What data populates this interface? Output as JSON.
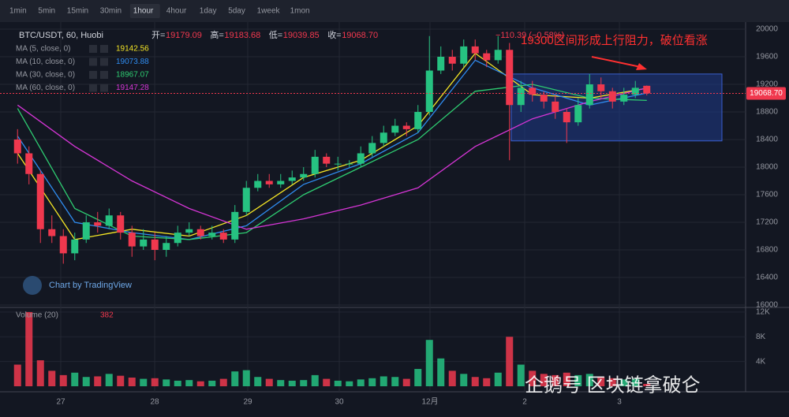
{
  "toolbar": {
    "timeframes": [
      "1min",
      "5min",
      "15min",
      "30min",
      "1hour",
      "4hour",
      "1day",
      "5day",
      "1week",
      "1mon"
    ],
    "active": 4
  },
  "chart_data": {
    "type": "candlestick",
    "symbol": "BTC/USDT, 60, Huobi",
    "header": [
      {
        "label": "开=",
        "value": "19179.09"
      },
      {
        "label": "高=",
        "value": "19183.68"
      },
      {
        "label": "低=",
        "value": "19039.85"
      },
      {
        "label": "收=",
        "value": "19068.70"
      }
    ],
    "change": "−110.39 (−0.58%)",
    "annotation": "19300区间形成上行阻力，破位看涨",
    "zone": [
      18380,
      19350
    ],
    "watermark": "Chart by TradingView",
    "credit": "企鹅号 区块链拿破仑",
    "up_color": "#26c281",
    "down_color": "#f0384e",
    "ylim": [
      16000,
      20000
    ],
    "yticks": [
      16000,
      16400,
      16800,
      17200,
      17600,
      18000,
      18400,
      18800,
      19200,
      19600,
      20000
    ],
    "xtick_labels": [
      "27",
      "28",
      "29",
      "30",
      "12月",
      "2",
      "3"
    ],
    "open": [
      18400,
      18200,
      17900,
      17100,
      17000,
      16750,
      16950,
      17200,
      17150,
      17300,
      17050,
      16850,
      16950,
      16800,
      16900,
      17050,
      17100,
      17000,
      17050,
      16950,
      17350,
      17700,
      17800,
      17750,
      17800,
      17850,
      17900,
      18150,
      18050,
      18050,
      18050,
      18200,
      18350,
      18500,
      18600,
      18550,
      18800,
      19400,
      19600,
      19500,
      19750,
      19650,
      19550,
      19700,
      18900,
      19150,
      19050,
      18950,
      18800,
      18650,
      18900,
      19200,
      19100,
      18950,
      19050,
      19179.09
    ],
    "high": [
      18550,
      18300,
      17950,
      17300,
      17100,
      17050,
      17300,
      17350,
      17400,
      17350,
      17150,
      17100,
      17050,
      17000,
      17150,
      17200,
      17150,
      17150,
      17100,
      17450,
      17800,
      17900,
      17900,
      17900,
      17950,
      18000,
      18250,
      18200,
      18150,
      18100,
      18300,
      18450,
      18600,
      18700,
      18650,
      18900,
      19900,
      19750,
      19700,
      19850,
      19850,
      19700,
      19900,
      19800,
      19250,
      19250,
      19100,
      19050,
      18850,
      19000,
      19350,
      19300,
      19150,
      19150,
      19250,
      19183.68
    ],
    "low": [
      18050,
      17750,
      16900,
      16900,
      16600,
      16650,
      16900,
      17050,
      17100,
      16950,
      16700,
      16800,
      16650,
      16700,
      16850,
      17000,
      16950,
      16950,
      16900,
      16900,
      17300,
      17650,
      17700,
      17700,
      17750,
      17800,
      17850,
      18000,
      17950,
      18000,
      18000,
      18150,
      18300,
      18450,
      18450,
      18500,
      18750,
      19350,
      19400,
      19450,
      19550,
      19450,
      19500,
      18100,
      18800,
      18950,
      18850,
      18700,
      18350,
      18600,
      18850,
      19000,
      18850,
      18900,
      19000,
      19039.85
    ],
    "close": [
      18200,
      17900,
      17100,
      17000,
      16750,
      16950,
      17200,
      17150,
      17300,
      17050,
      16850,
      16950,
      16800,
      16900,
      17050,
      17100,
      17000,
      17050,
      16950,
      17350,
      17700,
      17800,
      17750,
      17800,
      17850,
      17900,
      18150,
      18050,
      18050,
      18050,
      18200,
      18350,
      18500,
      18600,
      18550,
      18800,
      19400,
      19600,
      19500,
      19750,
      19650,
      19550,
      19700,
      18900,
      19150,
      19050,
      18950,
      18800,
      18650,
      18900,
      19200,
      19100,
      18950,
      19050,
      19150,
      19068.7
    ],
    "ma": [
      {
        "name": "MA (5, close, 0)",
        "color": "#f5e625",
        "x": [
          0,
          5,
          10,
          15,
          20,
          25,
          30,
          35,
          40,
          45,
          50,
          55
        ],
        "values": [
          18200,
          16950,
          17100,
          17000,
          17300,
          17850,
          18100,
          18600,
          19650,
          19050,
          19000,
          19142.56
        ]
      },
      {
        "name": "MA (10, close, 0)",
        "color": "#2f8cf0",
        "x": [
          0,
          5,
          10,
          15,
          20,
          25,
          30,
          35,
          40,
          45,
          50,
          55
        ],
        "values": [
          18450,
          17200,
          17050,
          16950,
          17150,
          17750,
          18050,
          18500,
          19550,
          19150,
          18900,
          19073.88
        ]
      },
      {
        "name": "MA (30, close, 0)",
        "color": "#2ecc71",
        "x": [
          0,
          5,
          10,
          15,
          20,
          25,
          30,
          35,
          40,
          45,
          50,
          55
        ],
        "values": [
          18850,
          17400,
          17000,
          16950,
          17050,
          17600,
          18000,
          18400,
          19100,
          19200,
          19000,
          18967.07
        ]
      },
      {
        "name": "MA (60, close, 0)",
        "color": "#d535d5",
        "x": [
          0,
          5,
          10,
          15,
          20,
          25,
          30,
          35,
          40,
          45,
          50,
          55
        ],
        "values": [
          18900,
          18300,
          17800,
          17400,
          17100,
          17250,
          17450,
          17700,
          18300,
          18700,
          18950,
          19147.28
        ]
      }
    ],
    "volume_name": "Volume (20)",
    "volume": [
      3500,
      12000,
      4200,
      2500,
      1800,
      2200,
      1500,
      1600,
      2000,
      1700,
      1400,
      1200,
      1300,
      1100,
      900,
      1000,
      800,
      900,
      1200,
      2400,
      2600,
      1500,
      1200,
      1000,
      900,
      1000,
      1800,
      1200,
      900,
      800,
      1100,
      1300,
      1600,
      1500,
      1200,
      2800,
      7500,
      4500,
      2500,
      2000,
      1500,
      1300,
      2200,
      8000,
      3500,
      2500,
      2000,
      1800,
      2200,
      1800,
      2000,
      1500,
      1300,
      1100,
      1200,
      382
    ],
    "vlim": [
      0,
      12500
    ],
    "vticks": [
      {
        "value": 4000,
        "label": "4K"
      },
      {
        "value": 8000,
        "label": "8K"
      },
      {
        "value": 12000,
        "label": "12K"
      }
    ]
  }
}
